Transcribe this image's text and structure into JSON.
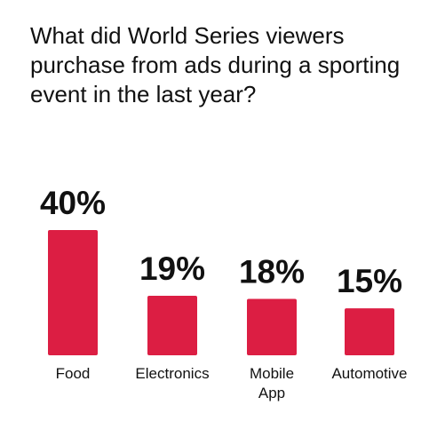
{
  "chart_data": {
    "type": "bar",
    "title": "What did World Series viewers purchase from ads during a sporting event in the last year?",
    "categories": [
      [
        "Food"
      ],
      [
        "Electronics"
      ],
      [
        "Mobile",
        "App"
      ],
      [
        "Automotive"
      ]
    ],
    "values": [
      40,
      19,
      18,
      15
    ],
    "value_labels": [
      "40%",
      "19%",
      "18%",
      "15%"
    ],
    "bar_color": "#dc1e43",
    "grid": false,
    "legend": "none"
  }
}
